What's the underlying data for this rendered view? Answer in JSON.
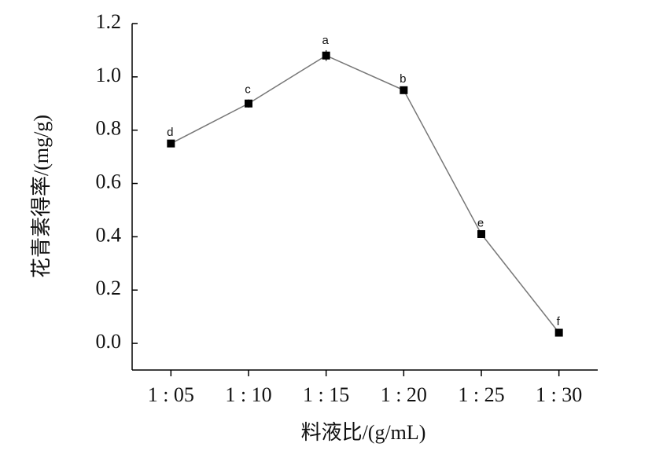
{
  "chart_data": {
    "type": "line",
    "categories": [
      "1 : 05",
      "1 : 10",
      "1 : 15",
      "1 : 20",
      "1 : 25",
      "1 : 30"
    ],
    "values": [
      0.75,
      0.9,
      1.08,
      0.95,
      0.41,
      0.04
    ],
    "errors": [
      0.005,
      0.015,
      0.02,
      0.005,
      0.005,
      0.005
    ],
    "letters": [
      "d",
      "c",
      "a",
      "b",
      "e",
      "f"
    ],
    "color": "#000000",
    "xlabel": "料液比/(g/mL)",
    "ylabel": "花青素得率/(mg/g)",
    "ylim": [
      -0.1,
      1.2
    ],
    "yticks": [
      {
        "value": 0,
        "label": "0.0"
      },
      0.2,
      0.4,
      0.6,
      0.8,
      {
        "value": 1,
        "label": "1.0"
      },
      1.2
    ]
  }
}
